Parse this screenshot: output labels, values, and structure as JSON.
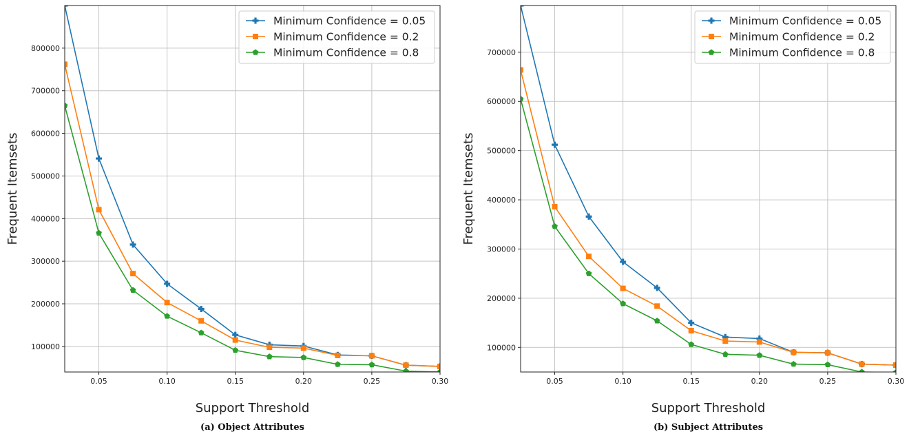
{
  "chart_data": [
    {
      "type": "line",
      "caption": "(a) Object Attributes",
      "xlabel": "Support Threshold",
      "ylabel": "Frequent Itemsets",
      "xlim": [
        0.025,
        0.3
      ],
      "ylim": [
        40000,
        900000
      ],
      "xticks": [
        0.05,
        0.1,
        0.15,
        0.2,
        0.25,
        0.3
      ],
      "xtick_labels": [
        "0.05",
        "0.10",
        "0.15",
        "0.20",
        "0.25",
        "0.30"
      ],
      "yticks": [
        100000,
        200000,
        300000,
        400000,
        500000,
        600000,
        700000,
        800000
      ],
      "ytick_labels": [
        "100000",
        "200000",
        "300000",
        "400000",
        "500000",
        "600000",
        "700000",
        "800000"
      ],
      "grid": true,
      "legend_position": "upper right",
      "x": [
        0.025,
        0.05,
        0.075,
        0.1,
        0.125,
        0.15,
        0.175,
        0.2,
        0.225,
        0.25,
        0.275,
        0.3
      ],
      "series": [
        {
          "name": "Minimum Confidence = 0.05",
          "color": "#1f77b4",
          "marker": "plus",
          "values": [
            900000,
            541000,
            339000,
            247000,
            188000,
            127000,
            104000,
            101000,
            80000,
            78000,
            56000,
            53000
          ]
        },
        {
          "name": "Minimum Confidence = 0.2",
          "color": "#ff7f0e",
          "marker": "square",
          "values": [
            762000,
            421000,
            271000,
            203000,
            160000,
            115000,
            98000,
            96000,
            79000,
            78000,
            56000,
            53000
          ]
        },
        {
          "name": "Minimum Confidence = 0.8",
          "color": "#2ca02c",
          "marker": "pentagon",
          "values": [
            665000,
            366000,
            232000,
            171000,
            132000,
            91000,
            76000,
            74000,
            58000,
            57000,
            42000,
            40000
          ]
        }
      ]
    },
    {
      "type": "line",
      "caption": "(b) Subject Attributes",
      "xlabel": "Support Threshold",
      "ylabel": "Frequent Itemsets",
      "xlim": [
        0.025,
        0.3
      ],
      "ylim": [
        50000,
        795000
      ],
      "xticks": [
        0.05,
        0.1,
        0.15,
        0.2,
        0.25,
        0.3
      ],
      "xtick_labels": [
        "0.05",
        "0.10",
        "0.15",
        "0.20",
        "0.25",
        "0.30"
      ],
      "yticks": [
        100000,
        200000,
        300000,
        400000,
        500000,
        600000,
        700000
      ],
      "ytick_labels": [
        "100000",
        "200000",
        "300000",
        "400000",
        "500000",
        "600000",
        "700000"
      ],
      "grid": true,
      "legend_position": "upper right",
      "x": [
        0.025,
        0.05,
        0.075,
        0.1,
        0.125,
        0.15,
        0.175,
        0.2,
        0.225,
        0.25,
        0.275,
        0.3
      ],
      "series": [
        {
          "name": "Minimum Confidence = 0.05",
          "color": "#1f77b4",
          "marker": "plus",
          "values": [
            795000,
            512000,
            366000,
            274000,
            221000,
            150000,
            121000,
            118000,
            90000,
            89000,
            66000,
            64000
          ]
        },
        {
          "name": "Minimum Confidence = 0.2",
          "color": "#ff7f0e",
          "marker": "square",
          "values": [
            664000,
            386000,
            285000,
            220000,
            184000,
            134000,
            113000,
            111000,
            90000,
            89000,
            66000,
            64000
          ]
        },
        {
          "name": "Minimum Confidence = 0.8",
          "color": "#2ca02c",
          "marker": "pentagon",
          "values": [
            605000,
            346000,
            250000,
            189000,
            154000,
            106000,
            86000,
            84000,
            66000,
            65000,
            50000,
            49000
          ]
        }
      ]
    }
  ]
}
